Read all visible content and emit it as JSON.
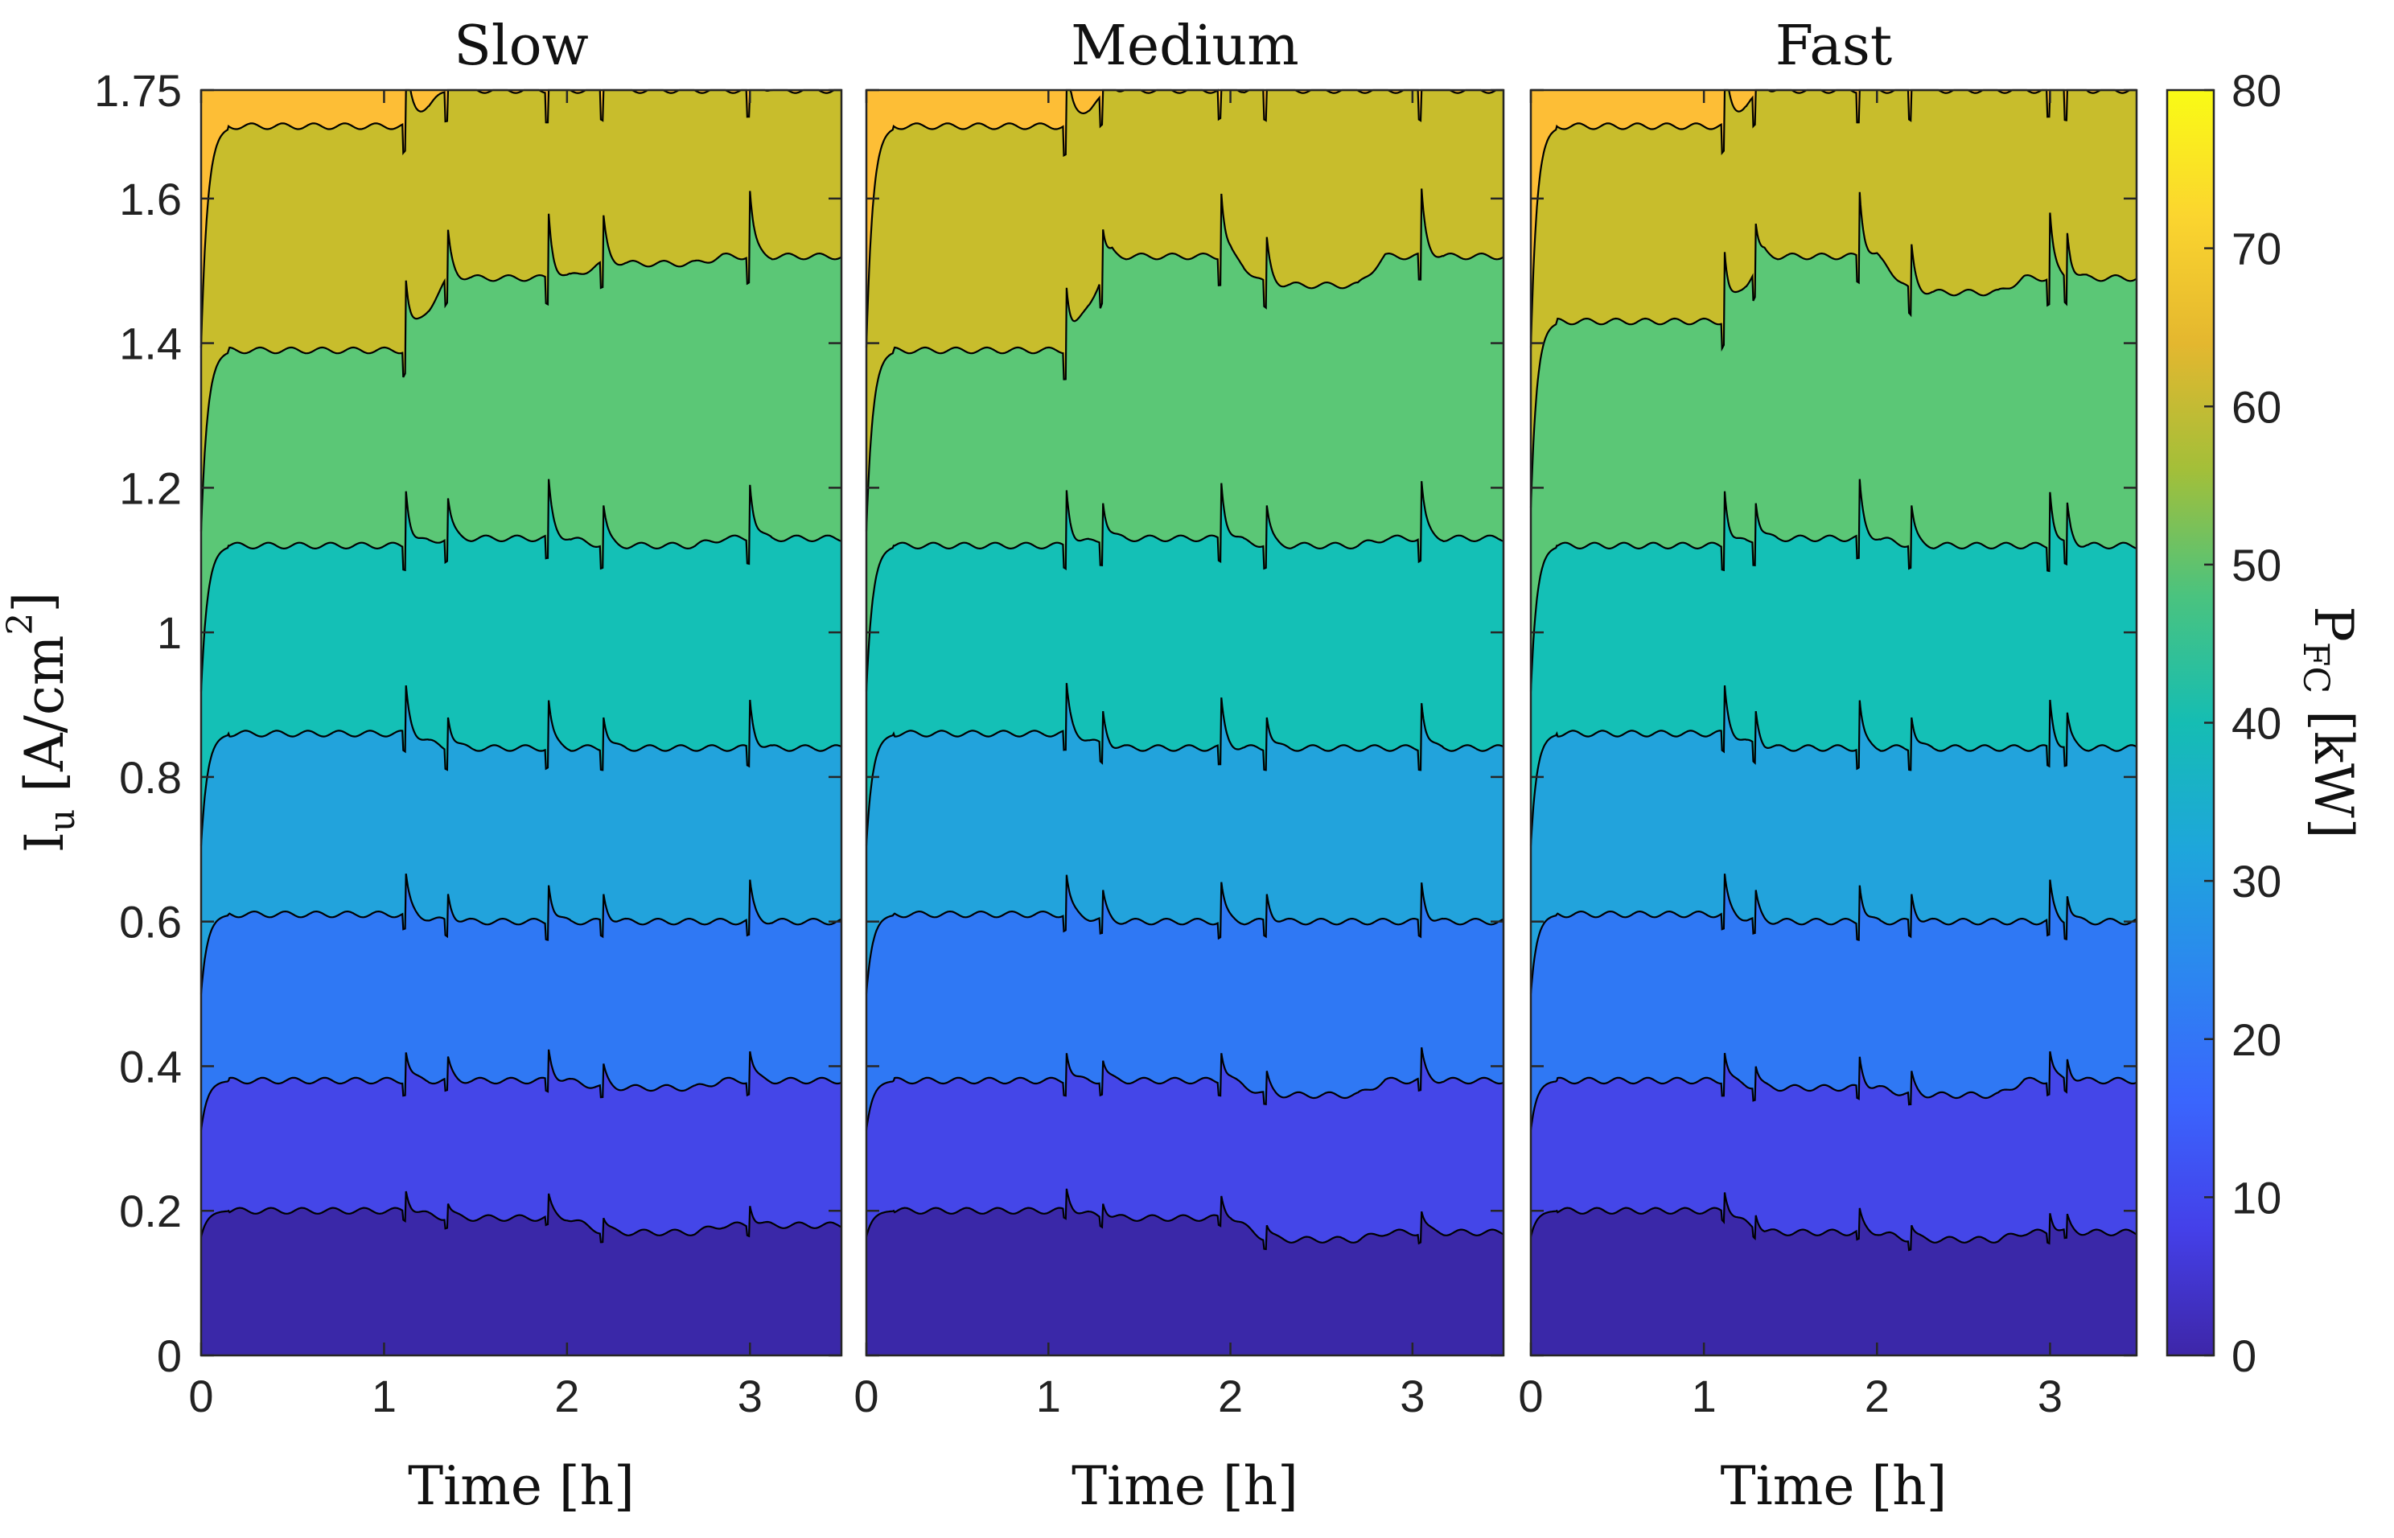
{
  "chart_data": {
    "type": "contour",
    "colormap": "parula",
    "panels": [
      {
        "title": "Slow",
        "levels": [
          {
            "value": 10,
            "steady_y": [
              0.2,
              0.19,
              0.17,
              0.18
            ]
          },
          {
            "value": 20,
            "steady_y": [
              0.38,
              0.38,
              0.37,
              0.38
            ]
          },
          {
            "value": 30,
            "steady_y": [
              0.61,
              0.6,
              0.6,
              0.6
            ]
          },
          {
            "value": 40,
            "steady_y": [
              0.86,
              0.84,
              0.84,
              0.84
            ]
          },
          {
            "value": 50,
            "steady_y": [
              1.12,
              1.13,
              1.12,
              1.13
            ]
          },
          {
            "value": 60,
            "steady_y": [
              1.39,
              1.49,
              1.51,
              1.52
            ]
          },
          {
            "value": 70,
            "steady_y": [
              1.7,
              1.75,
              1.75,
              1.75
            ]
          }
        ],
        "spikes_h": [
          1.12,
          1.35,
          1.9,
          2.2,
          3.0
        ]
      },
      {
        "title": "Medium",
        "levels": [
          {
            "value": 10,
            "steady_y": [
              0.2,
              0.19,
              0.16,
              0.17
            ]
          },
          {
            "value": 20,
            "steady_y": [
              0.38,
              0.38,
              0.36,
              0.38
            ]
          },
          {
            "value": 30,
            "steady_y": [
              0.61,
              0.6,
              0.6,
              0.6
            ]
          },
          {
            "value": 40,
            "steady_y": [
              0.86,
              0.84,
              0.84,
              0.84
            ]
          },
          {
            "value": 50,
            "steady_y": [
              1.12,
              1.13,
              1.12,
              1.13
            ]
          },
          {
            "value": 60,
            "steady_y": [
              1.39,
              1.52,
              1.48,
              1.52
            ]
          },
          {
            "value": 70,
            "steady_y": [
              1.7,
              1.75,
              1.75,
              1.75
            ]
          }
        ],
        "spikes_h": [
          1.1,
          1.3,
          1.95,
          2.2,
          3.05
        ]
      },
      {
        "title": "Fast",
        "levels": [
          {
            "value": 10,
            "steady_y": [
              0.2,
              0.17,
              0.16,
              0.17
            ]
          },
          {
            "value": 20,
            "steady_y": [
              0.38,
              0.37,
              0.36,
              0.38
            ]
          },
          {
            "value": 30,
            "steady_y": [
              0.61,
              0.6,
              0.6,
              0.6
            ]
          },
          {
            "value": 40,
            "steady_y": [
              0.86,
              0.84,
              0.84,
              0.84
            ]
          },
          {
            "value": 50,
            "steady_y": [
              1.12,
              1.13,
              1.12,
              1.12
            ]
          },
          {
            "value": 60,
            "steady_y": [
              1.43,
              1.52,
              1.47,
              1.49
            ]
          },
          {
            "value": 70,
            "steady_y": [
              1.7,
              1.75,
              1.75,
              1.75
            ]
          }
        ],
        "spikes_h": [
          1.12,
          1.3,
          1.9,
          2.2,
          3.0,
          3.1
        ]
      }
    ],
    "x": {
      "label": "Time [h]",
      "lim": [
        0,
        3.5
      ],
      "ticks": [
        "0",
        "1",
        "2",
        "3"
      ]
    },
    "y": {
      "label_main": "I",
      "label_sub": "u",
      "label_unit_open": " [A/cm",
      "label_sup": "2",
      "label_unit_close": "]",
      "lim": [
        0,
        1.75
      ],
      "ticks": [
        "0",
        "0.2",
        "0.4",
        "0.6",
        "0.8",
        "1",
        "1.2",
        "1.4",
        "1.6",
        "1.75"
      ]
    },
    "colorbar": {
      "label_main": "P",
      "label_sub": "FC",
      "label_unit": " [kW]",
      "lim": [
        0,
        80
      ],
      "ticks": [
        "0",
        "10",
        "20",
        "30",
        "40",
        "50",
        "60",
        "70",
        "80"
      ],
      "colors": [
        "#3e26a8",
        "#4440e9",
        "#3a65fd",
        "#2c86f0",
        "#1ea6db",
        "#15bdb3",
        "#4ac37f",
        "#a3bf39",
        "#e4b72f",
        "#fbd52f",
        "#f9fb15"
      ]
    },
    "band_colors": [
      "#3a28a8",
      "#4446e8",
      "#2f78f4",
      "#22a3dc",
      "#14c0b6",
      "#5bc776",
      "#c8bd2c",
      "#fdbe36"
    ]
  }
}
